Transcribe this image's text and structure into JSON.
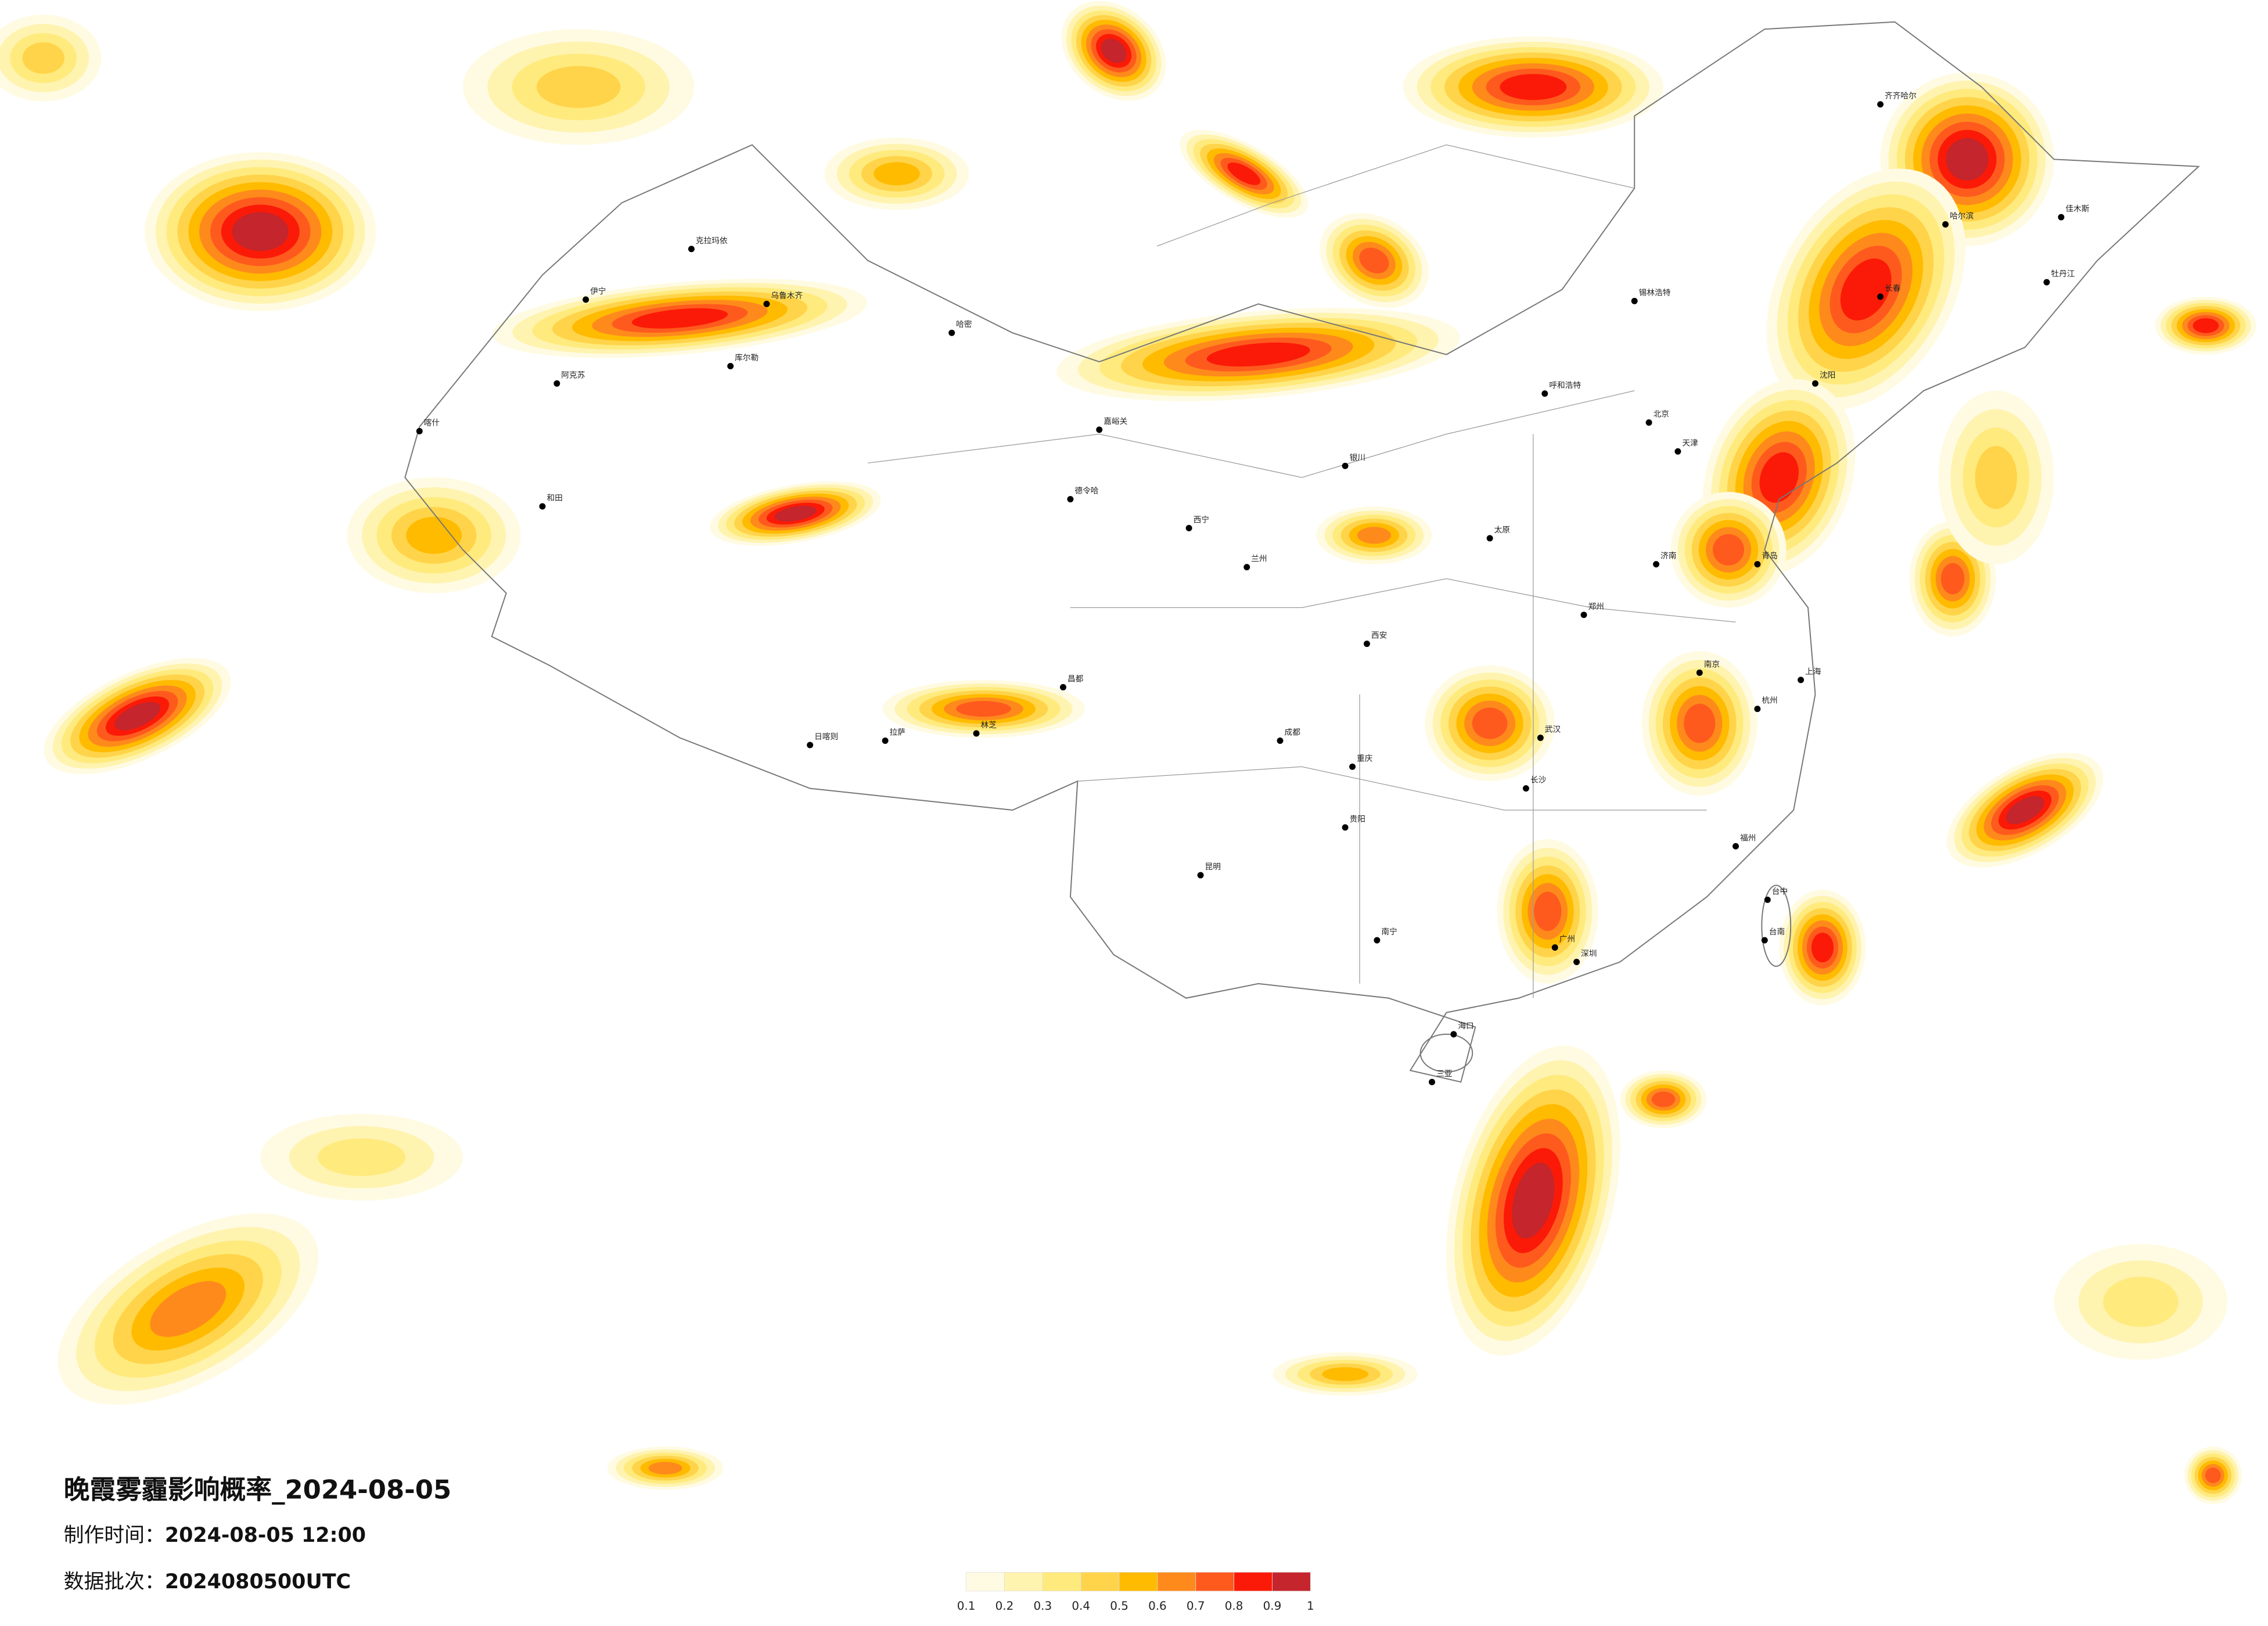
{
  "title": "晚霞雾霾影响概率_2024-08-05",
  "info": [
    {
      "label": "制作时间：",
      "value": "2024-08-05 12:00"
    },
    {
      "label": "数据批次：",
      "value": "2024080500UTC"
    }
  ],
  "legend": {
    "colors": [
      "#fffbe3",
      "#fff3b0",
      "#ffea7d",
      "#ffd44a",
      "#ffbb00",
      "#ff8a1c",
      "#ff5a1e",
      "#fb1a07",
      "#c5252c"
    ],
    "ticks": [
      0.1,
      0.2,
      0.3,
      0.4,
      0.5,
      0.6,
      0.7,
      0.8,
      0.9,
      1
    ]
  },
  "cities": [
    "喀什",
    "和田",
    "阿克苏",
    "伊宁",
    "克拉玛依",
    "乌鲁木齐",
    "库尔勒",
    "哈密",
    "嘉峪关",
    "德令哈",
    "日喀则",
    "拉萨",
    "林芝",
    "昌都",
    "西宁",
    "兰州",
    "银川",
    "呼和浩特",
    "太原",
    "西安",
    "成都",
    "重庆",
    "贵阳",
    "昆明",
    "南宁",
    "海口",
    "三亚",
    "广州",
    "深圳",
    "福州",
    "台中",
    "台南",
    "杭州",
    "上海",
    "南京",
    "武汉",
    "长沙",
    "郑州",
    "济南",
    "青岛",
    "北京",
    "天津",
    "沈阳",
    "长春",
    "哈尔滨",
    "齐齐哈尔",
    "锡林浩特",
    "牡丹江",
    "佳木斯"
  ]
}
